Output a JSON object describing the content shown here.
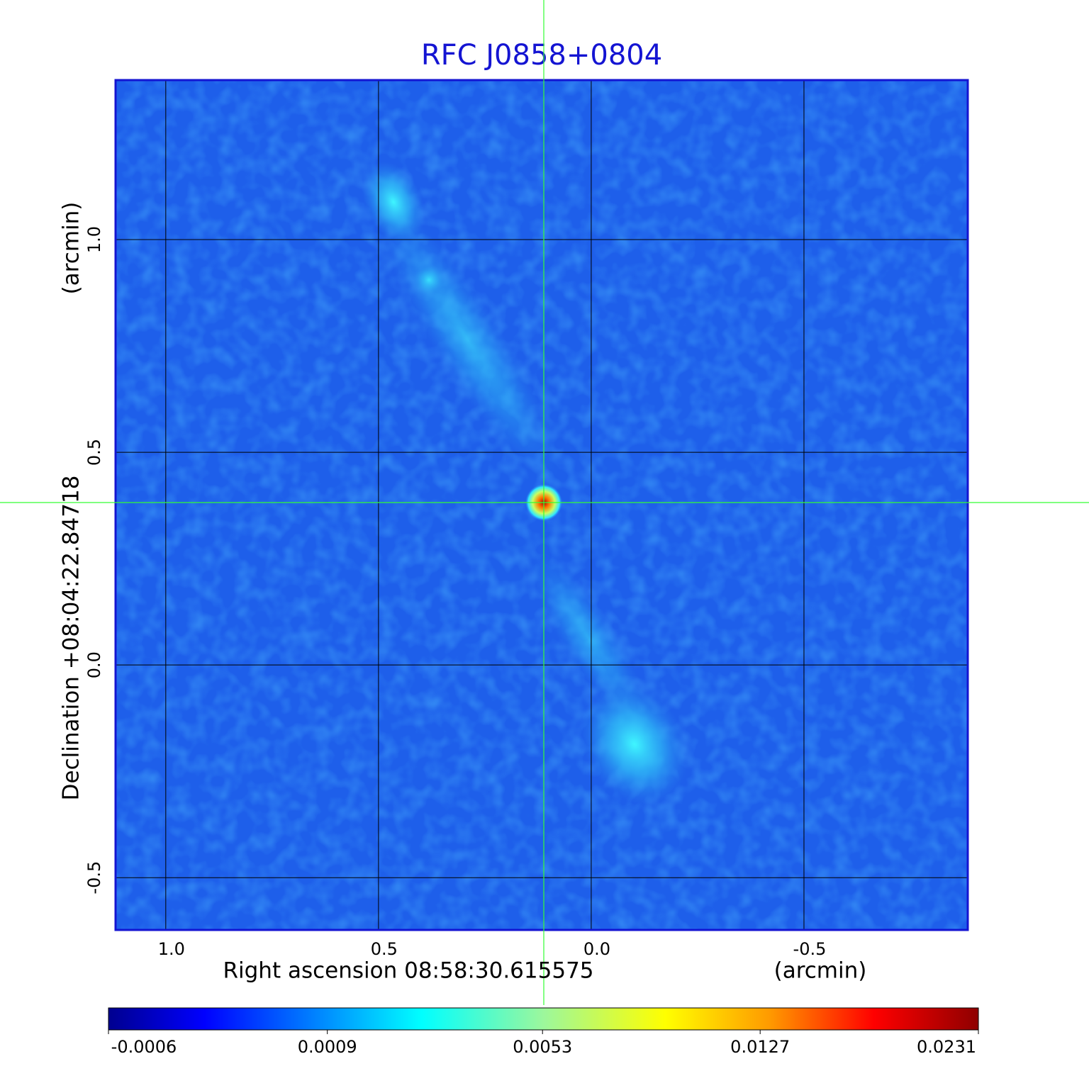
{
  "chart_data": {
    "type": "image",
    "title": "RFC J0858+0804",
    "xlabel": "Right ascension  08:58:30.615575",
    "xunit": "(arcmin)",
    "ylabel": "Declination  +08:04:22.84718",
    "yunit": "(arcmin)",
    "xlim": [
      1.118,
      -0.885
    ],
    "ylim": [
      -0.623,
      1.375
    ],
    "xticks": [
      {
        "value": 1,
        "label": "1.0"
      },
      0.5,
      {
        "value": 0,
        "label": "0.0"
      },
      -0.5
    ],
    "yticks": [
      -0.5,
      {
        "value": 0,
        "label": "0.0"
      },
      0.5,
      {
        "value": 1,
        "label": "1.0"
      }
    ],
    "grid": true,
    "clim": [
      -0.0006,
      0.0231
    ],
    "cticks": [
      -0.0006,
      0.0009,
      0.0053,
      0.0127,
      0.0231
    ],
    "color_scale": "sqrt"
  }
}
